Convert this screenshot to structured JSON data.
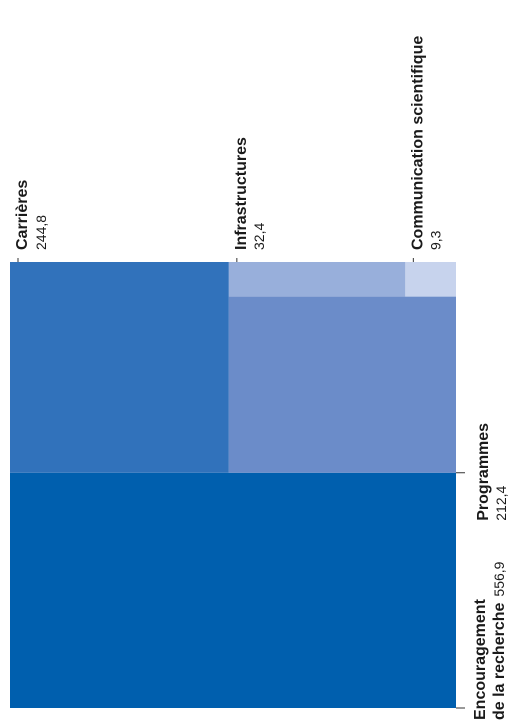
{
  "chart_data": {
    "type": "treemap",
    "items": [
      {
        "key": "encouragement",
        "name_lines": [
          "Encouragement",
          "de la recherche"
        ],
        "value": 556.9,
        "value_label": "556,9",
        "color": "#005fae"
      },
      {
        "key": "carrieres",
        "name_lines": [
          "Carrières"
        ],
        "value": 244.8,
        "value_label": "244,8",
        "color": "#3172bb"
      },
      {
        "key": "programmes",
        "name_lines": [
          "Programmes"
        ],
        "value": 212.4,
        "value_label": "212,4",
        "color": "#6b8cc9"
      },
      {
        "key": "infrastructures",
        "name_lines": [
          "Infrastructures"
        ],
        "value": 32.4,
        "value_label": "32,4",
        "color": "#98afdb"
      },
      {
        "key": "communication",
        "name_lines": [
          "Communication scientifique"
        ],
        "value": 9.3,
        "value_label": "9,3",
        "color": "#c7d3ed"
      }
    ]
  }
}
